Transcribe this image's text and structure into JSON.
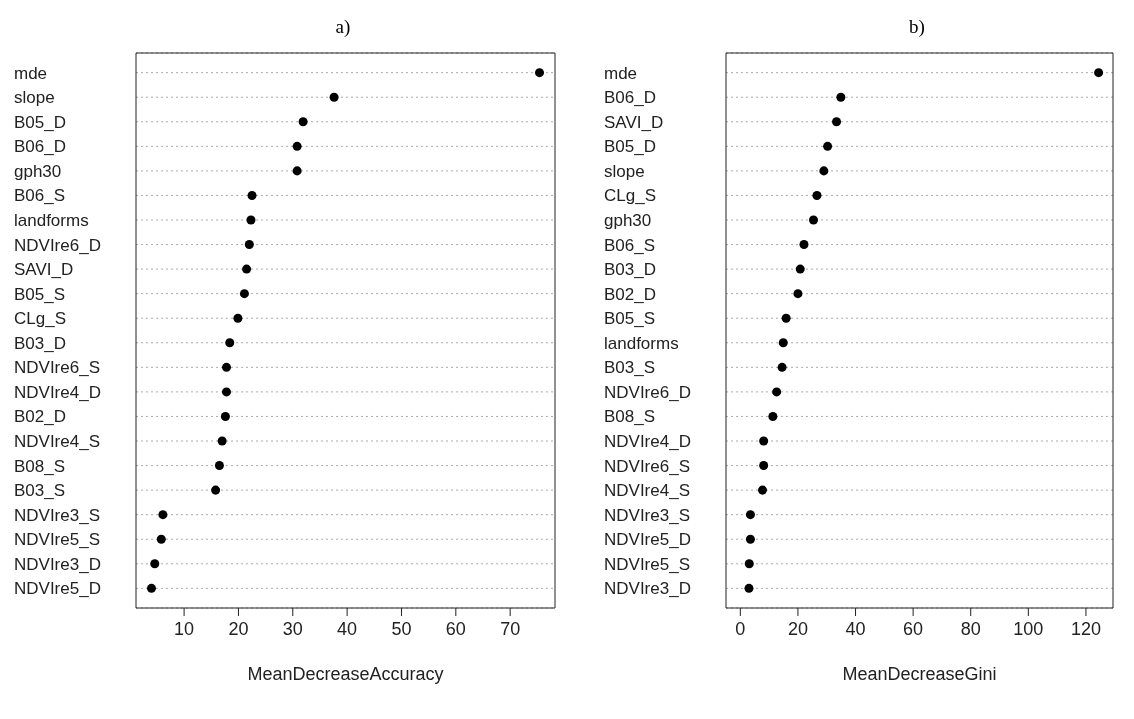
{
  "chart_data": [
    {
      "type": "scatter",
      "title": "a)",
      "xlabel": "MeanDecreaseAccuracy",
      "orientation": "horizontal",
      "grid": "y",
      "marker": "circle",
      "color": "#000000",
      "xlim": [
        1.15,
        78.25
      ],
      "xticks": [
        10,
        20,
        30,
        40,
        50,
        60,
        70
      ],
      "categories": [
        "mde",
        "slope",
        "B05_D",
        "B06_D",
        "gph30",
        "B06_S",
        "landforms",
        "NDVIre6_D",
        "SAVI_D",
        "B05_S",
        "CLg_S",
        "B03_D",
        "NDVIre6_S",
        "NDVIre4_D",
        "B02_D",
        "NDVIre4_S",
        "B08_S",
        "B03_S",
        "NDVIre3_S",
        "NDVIre5_S",
        "NDVIre3_D",
        "NDVIre5_D"
      ],
      "values": [
        75.4,
        37.6,
        31.9,
        30.8,
        30.8,
        22.5,
        22.3,
        22.0,
        21.5,
        21.1,
        19.9,
        18.4,
        17.8,
        17.8,
        17.6,
        17.0,
        16.5,
        15.8,
        6.1,
        5.8,
        4.6,
        4.0
      ]
    },
    {
      "type": "scatter",
      "title": "b)",
      "xlabel": "MeanDecreaseGini",
      "orientation": "horizontal",
      "grid": "y",
      "marker": "circle",
      "color": "#000000",
      "xlim": [
        -4.98,
        129.4
      ],
      "xticks": [
        0,
        20,
        40,
        60,
        80,
        100,
        120
      ],
      "categories": [
        "mde",
        "B06_D",
        "SAVI_D",
        "B05_D",
        "slope",
        "CLg_S",
        "gph30",
        "B06_S",
        "B03_D",
        "B02_D",
        "B05_S",
        "landforms",
        "B03_S",
        "NDVIre6_D",
        "B08_S",
        "NDVIre4_D",
        "NDVIre6_S",
        "NDVIre4_S",
        "NDVIre3_S",
        "NDVIre5_D",
        "NDVIre5_S",
        "NDVIre3_D"
      ],
      "values": [
        124.4,
        34.9,
        33.4,
        30.3,
        29.0,
        26.6,
        25.4,
        22.1,
        20.8,
        20.0,
        15.9,
        14.9,
        14.5,
        12.6,
        11.3,
        8.1,
        8.1,
        7.7,
        3.5,
        3.5,
        3.1,
        3.0
      ]
    }
  ]
}
